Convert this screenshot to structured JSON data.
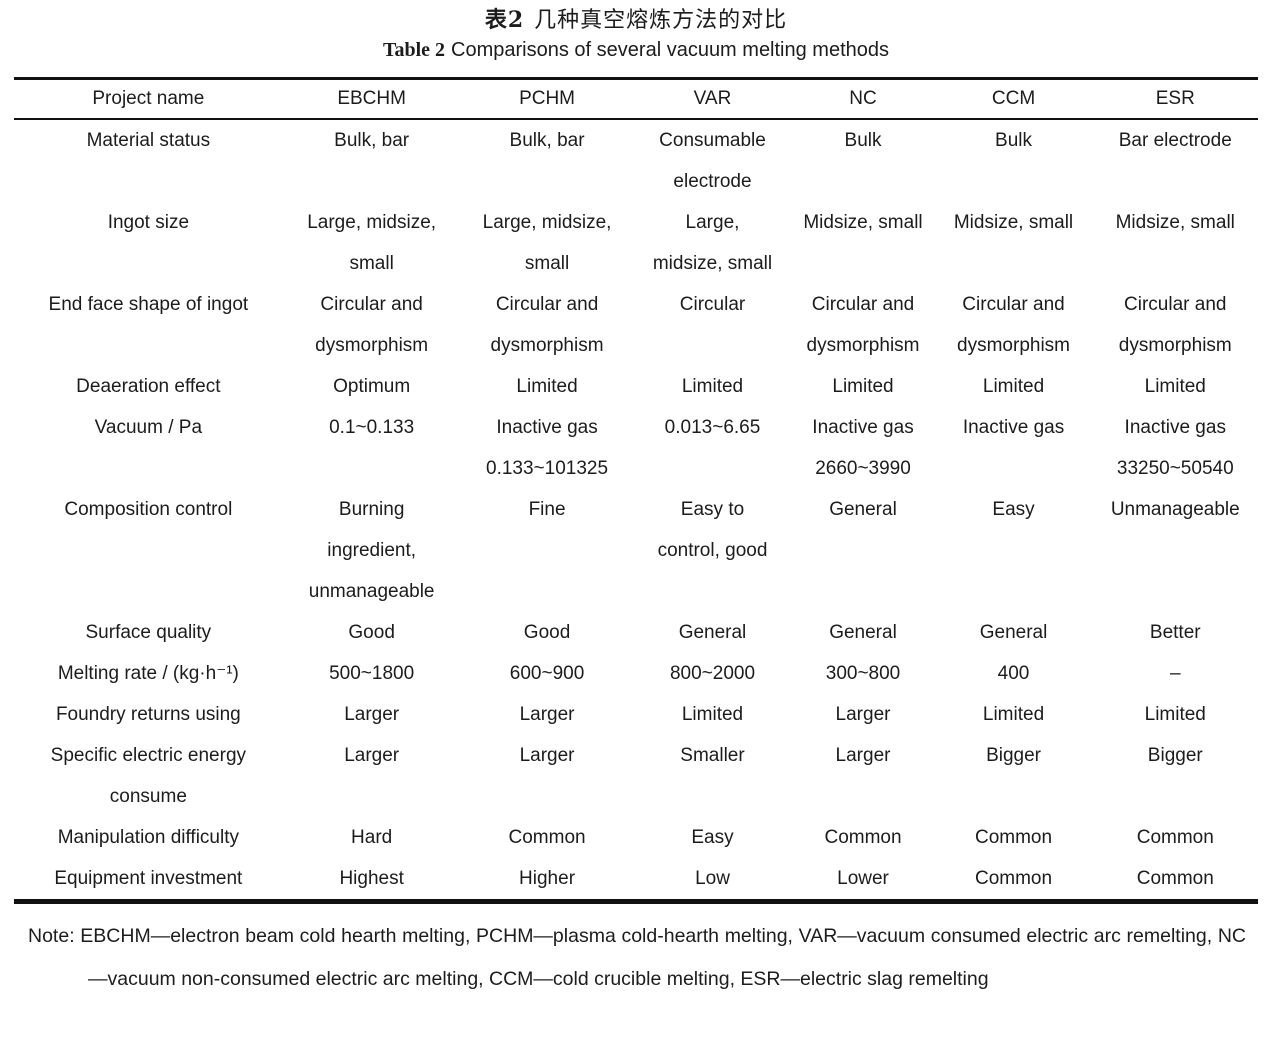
{
  "caption": {
    "zh_label": "表2",
    "zh_text": "几种真空熔炼方法的对比",
    "en_label": "Table 2",
    "en_text": "Comparisons of several vacuum melting methods"
  },
  "table": {
    "columns": [
      "Project name",
      "EBCHM",
      "PCHM",
      "VAR",
      "NC",
      "CCM",
      "ESR"
    ],
    "rows": [
      {
        "label": "Material status",
        "cells": [
          "Bulk, bar",
          "Bulk, bar",
          "Consumable\nelectrode",
          "Bulk",
          "Bulk",
          "Bar electrode"
        ]
      },
      {
        "label": "Ingot size",
        "cells": [
          "Large, midsize,\nsmall",
          "Large, midsize,\nsmall",
          "Large,\nmidsize, small",
          "Midsize, small",
          "Midsize, small",
          "Midsize, small"
        ]
      },
      {
        "label": "End face shape of ingot",
        "cells": [
          "Circular and\ndysmorphism",
          "Circular and\ndysmorphism",
          "Circular",
          "Circular and\ndysmorphism",
          "Circular and\ndysmorphism",
          "Circular and\ndysmorphism"
        ]
      },
      {
        "label": "Deaeration effect",
        "cells": [
          "Optimum",
          "Limited",
          "Limited",
          "Limited",
          "Limited",
          "Limited"
        ]
      },
      {
        "label": "Vacuum / Pa",
        "cells": [
          "0.1~0.133",
          "Inactive gas\n0.133~101325",
          "0.013~6.65",
          "Inactive gas\n2660~3990",
          "Inactive gas",
          "Inactive gas\n33250~50540"
        ]
      },
      {
        "label": "Composition control",
        "cells": [
          "Burning\ningredient,\nunmanageable",
          "Fine",
          "Easy to\ncontrol, good",
          "General",
          "Easy",
          "Unmanageable"
        ]
      },
      {
        "label": "Surface quality",
        "cells": [
          "Good",
          "Good",
          "General",
          "General",
          "General",
          "Better"
        ]
      },
      {
        "label": "Melting rate / (kg·h⁻¹)",
        "cells": [
          "500~1800",
          "600~900",
          "800~2000",
          "300~800",
          "400",
          "–"
        ]
      },
      {
        "label": "Foundry returns using",
        "cells": [
          "Larger",
          "Larger",
          "Limited",
          "Larger",
          "Limited",
          "Limited"
        ]
      },
      {
        "label": "Specific electric energy\nconsume",
        "cells": [
          "Larger",
          "Larger",
          "Smaller",
          "Larger",
          "Bigger",
          "Bigger"
        ]
      },
      {
        "label": "Manipulation difficulty",
        "cells": [
          "Hard",
          "Common",
          "Easy",
          "Common",
          "Common",
          "Common"
        ]
      },
      {
        "label": "Equipment investment",
        "cells": [
          "Highest",
          "Higher",
          "Low",
          "Lower",
          "Common",
          "Common"
        ]
      }
    ]
  },
  "note": {
    "text": "Note: EBCHM—electron beam cold hearth melting, PCHM—plasma cold-hearth melting, VAR—vacuum consumed electric arc remelting, NC—vacuum non-consumed electric arc melting, CCM—cold crucible melting, ESR—electric slag remelting"
  }
}
